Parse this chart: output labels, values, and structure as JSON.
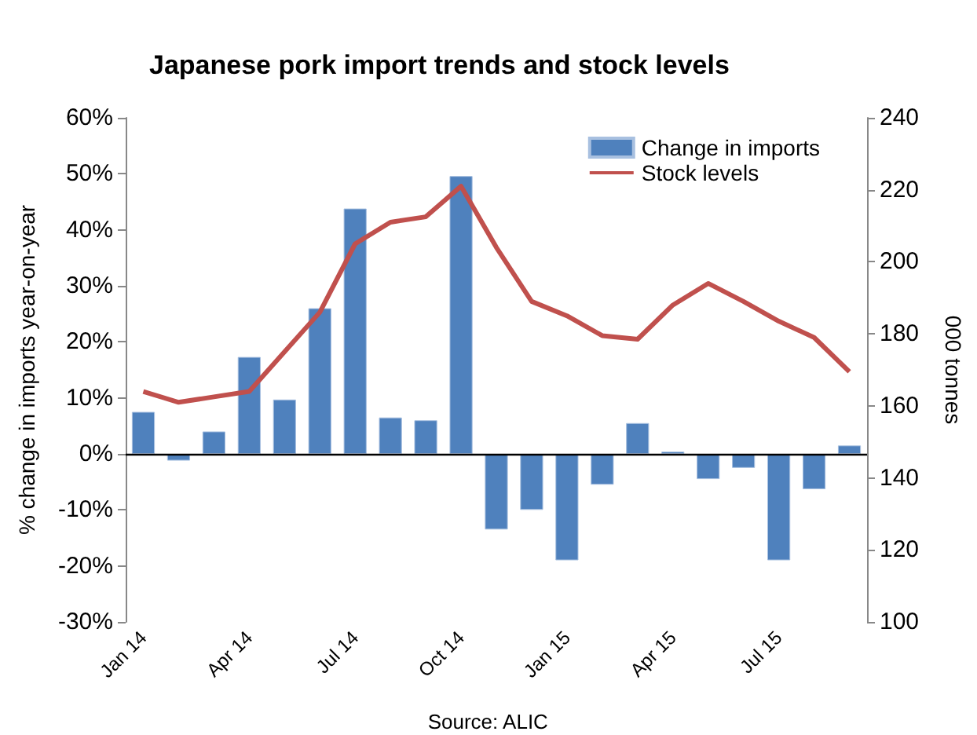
{
  "chart_data": {
    "type": "bar",
    "title": "Japanese pork import trends and stock levels",
    "ylabel": "% change in imports year-on-year",
    "y2label": "000 tonnes",
    "annotations": [
      "Source: ALIC"
    ],
    "categories": [
      "Jan 14",
      null,
      null,
      "Apr 14",
      null,
      null,
      "Jul 14",
      null,
      null,
      "Oct 14",
      null,
      null,
      "Jan 15",
      null,
      null,
      "Apr 15",
      null,
      null,
      "Jul 15",
      null,
      null
    ],
    "series": [
      {
        "name": "Change in imports",
        "color": "#4f81bd",
        "values": [
          7.5,
          -1.2,
          4,
          17.3,
          9.7,
          26,
          43.8,
          6.5,
          6,
          49.6,
          -13.5,
          -10,
          -19,
          -5.5,
          5.5,
          0.4,
          -4.5,
          -2.5,
          -19,
          -6.3,
          1.5
        ]
      },
      {
        "name": "Stock levels",
        "type": "line",
        "axis": "y2",
        "color": "#c0504d",
        "values": [
          164,
          161,
          162.5,
          164,
          175,
          186,
          205,
          211,
          212.5,
          221,
          204,
          189,
          185,
          179.5,
          178.5,
          188,
          194,
          189,
          183.5,
          179,
          169.5
        ]
      }
    ],
    "ylim": [
      -30,
      60
    ],
    "yticks": [
      {
        "value": -30,
        "label": "-30%"
      },
      {
        "value": -20,
        "label": "-20%"
      },
      {
        "value": -10,
        "label": "-10%"
      },
      {
        "value": 0,
        "label": "0%"
      },
      {
        "value": 10,
        "label": "10%"
      },
      {
        "value": 20,
        "label": "20%"
      },
      {
        "value": 30,
        "label": "30%"
      },
      {
        "value": 40,
        "label": "40%"
      },
      {
        "value": 50,
        "label": "50%"
      },
      {
        "value": 60,
        "label": "60%"
      }
    ],
    "y2lim": [
      100,
      240
    ],
    "y2ticks": [
      100,
      120,
      140,
      160,
      180,
      200,
      220,
      240
    ],
    "ref_lines": [
      {
        "axis": "y",
        "value": 0,
        "color": "#000000"
      }
    ],
    "legend": "top right",
    "marker": "none"
  }
}
